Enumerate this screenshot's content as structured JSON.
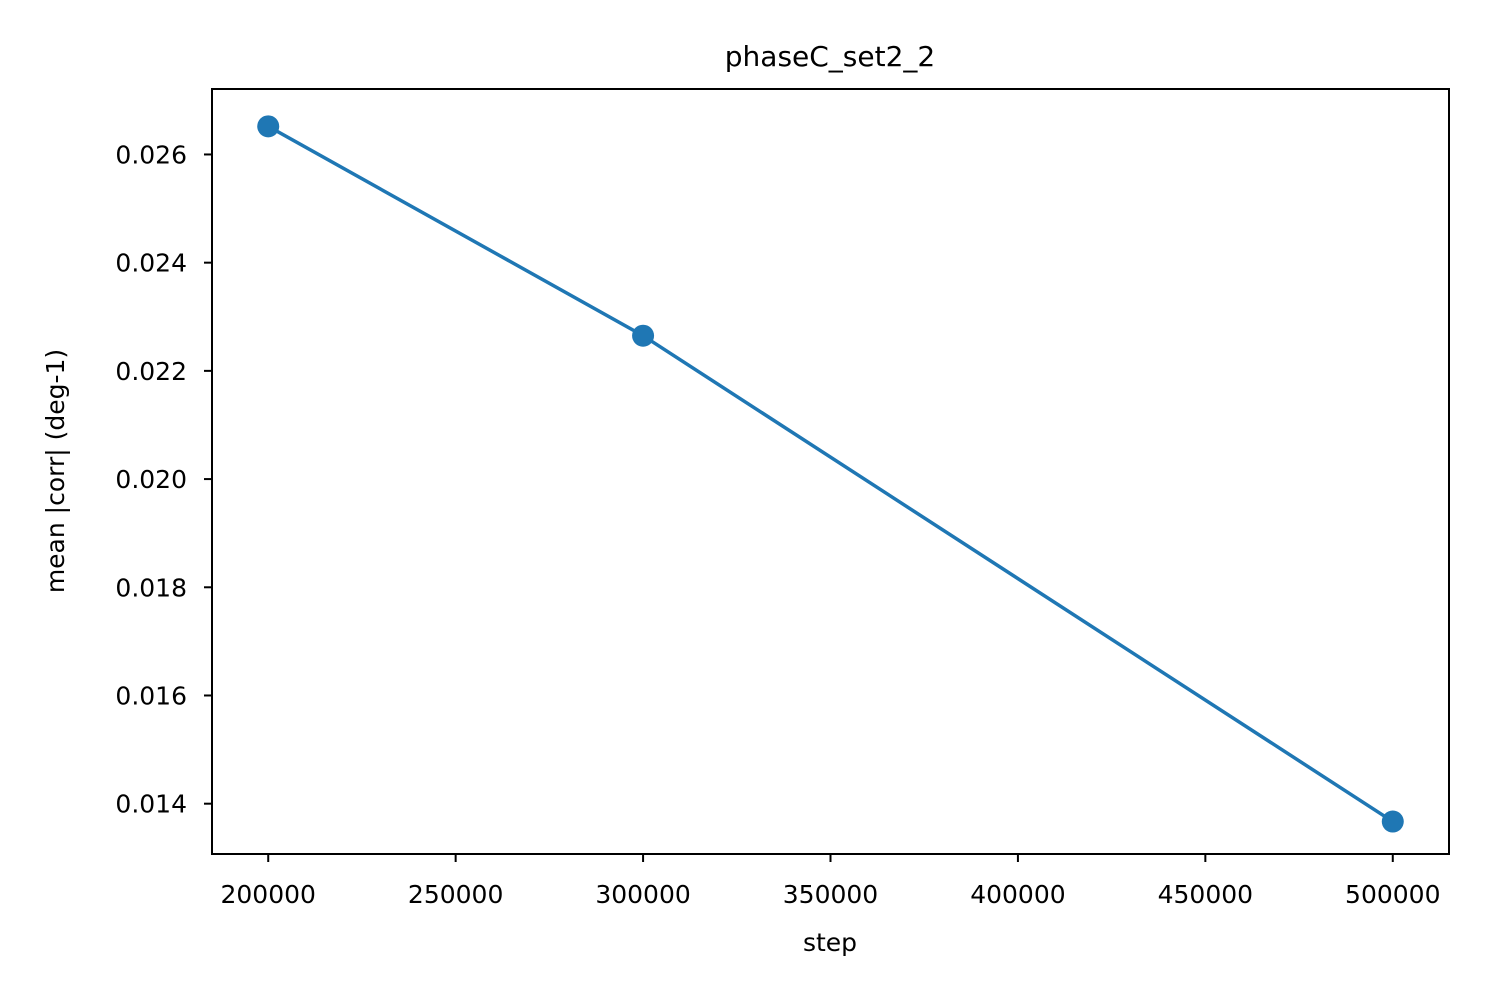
{
  "chart_data": {
    "type": "line",
    "title": "phaseC_set2_2",
    "xlabel": "step",
    "ylabel": "mean |corr| (deg-1)",
    "xlim": [
      185000,
      515000
    ],
    "ylim": [
      0.01307,
      0.02721
    ],
    "x_ticks": [
      200000,
      250000,
      300000,
      350000,
      400000,
      450000,
      500000
    ],
    "y_ticks": [
      0.014,
      0.016,
      0.018,
      0.02,
      0.022,
      0.024,
      0.026
    ],
    "x_tick_labels": [
      "200000",
      "250000",
      "300000",
      "350000",
      "400000",
      "450000",
      "500000"
    ],
    "y_tick_labels": [
      "0.014",
      "0.016",
      "0.018",
      "0.020",
      "0.022",
      "0.024",
      "0.026"
    ],
    "grid": false,
    "series": [
      {
        "x": [
          200000,
          300000,
          500000
        ],
        "y": [
          0.02652,
          0.02265,
          0.01367
        ],
        "color": "#1f77b4",
        "marker": "circle"
      }
    ]
  }
}
